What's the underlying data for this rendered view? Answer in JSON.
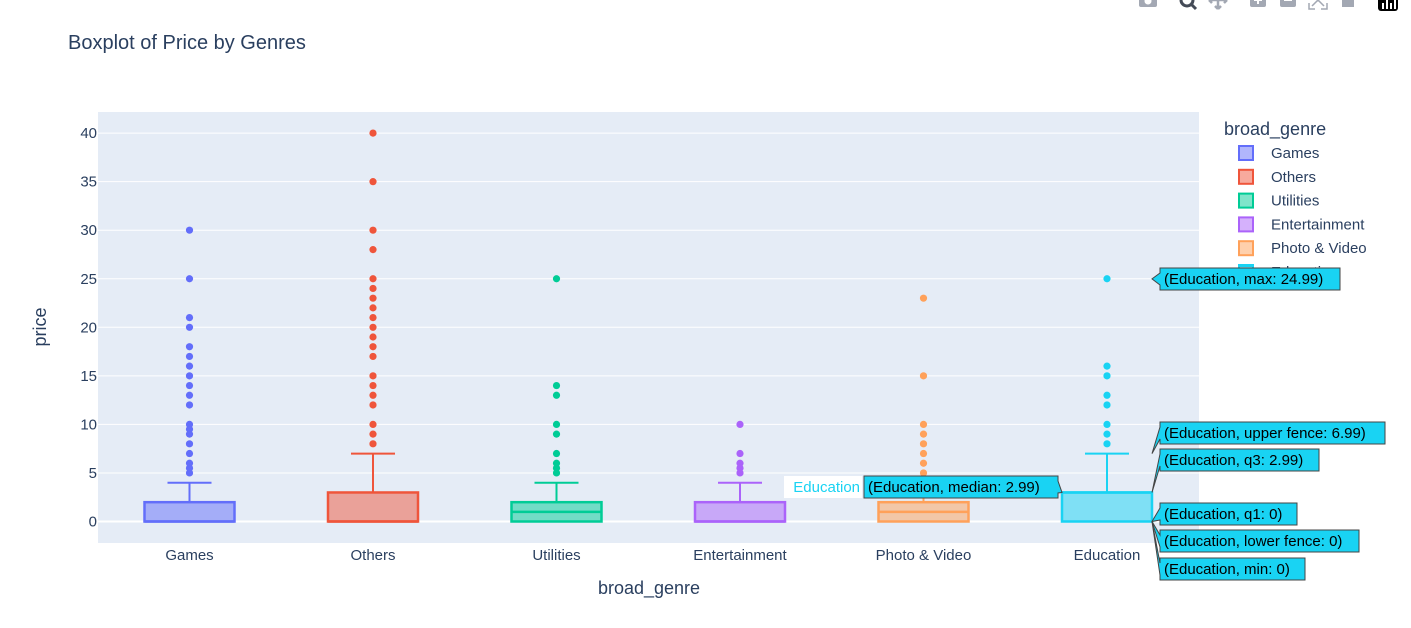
{
  "chart_data": {
    "type": "box",
    "title": "Boxplot of Price by Genres",
    "xlabel": "broad_genre",
    "ylabel": "price",
    "ylim": [
      -2.3,
      42
    ],
    "yticks": [
      0,
      5,
      10,
      15,
      20,
      25,
      30,
      35,
      40
    ],
    "grid": true,
    "legend_title": "broad_genre",
    "legend_position": "right",
    "categories": [
      "Games",
      "Others",
      "Utilities",
      "Entertainment",
      "Photo & Video",
      "Education"
    ],
    "series": [
      {
        "name": "Games",
        "color": "#636efa",
        "min": 0,
        "q1": 0,
        "median": 0,
        "q3": 1.99,
        "upper_fence": 3.99,
        "outliers": [
          30,
          25,
          21,
          20,
          18,
          17,
          16,
          15,
          14,
          13,
          12,
          10,
          9.5,
          9,
          8,
          7,
          6,
          5.5,
          5
        ]
      },
      {
        "name": "Others",
        "color": "#ef553b",
        "min": 0,
        "q1": 0,
        "median": 0,
        "q3": 2.99,
        "upper_fence": 6.99,
        "outliers": [
          40,
          35,
          30,
          28,
          25,
          24,
          23,
          22,
          21,
          20,
          19,
          18,
          17,
          15,
          14,
          13,
          12,
          10,
          9,
          8
        ]
      },
      {
        "name": "Utilities",
        "color": "#00cc96",
        "min": 0,
        "q1": 0,
        "median": 0.99,
        "q3": 1.99,
        "upper_fence": 3.99,
        "outliers": [
          25,
          14,
          13,
          10,
          9,
          7,
          6,
          5.5,
          5
        ]
      },
      {
        "name": "Entertainment",
        "color": "#ab63fa",
        "min": 0,
        "q1": 0,
        "median": 0,
        "q3": 1.99,
        "upper_fence": 3.99,
        "outliers": [
          10,
          7,
          6,
          5.5,
          5
        ]
      },
      {
        "name": "Photo & Video",
        "color": "#ffa15a",
        "min": 0,
        "q1": 0,
        "median": 0.99,
        "q3": 1.99,
        "upper_fence": 3.99,
        "outliers": [
          23,
          15,
          10,
          9,
          8,
          7,
          6,
          5
        ]
      },
      {
        "name": "Education",
        "color": "#19d3f3",
        "min": 0,
        "q1": 0,
        "median": 2.99,
        "q3": 2.99,
        "upper_fence": 6.99,
        "outliers": [
          25,
          16,
          15,
          13,
          12,
          10,
          9,
          8
        ]
      }
    ],
    "hover": {
      "category_label": "Education",
      "labels": [
        {
          "key": "max",
          "text": "(Education, max: 24.99)",
          "value": 24.99
        },
        {
          "key": "upper",
          "text": "(Education, upper fence: 6.99)",
          "value": 6.99
        },
        {
          "key": "q3",
          "text": "(Education, q3: 2.99)",
          "value": 2.99
        },
        {
          "key": "median",
          "text": "(Education, median: 2.99)",
          "value": 2.99
        },
        {
          "key": "q1",
          "text": "(Education, q1: 0)",
          "value": 0
        },
        {
          "key": "lower",
          "text": "(Education, lower fence: 0)",
          "value": 0
        },
        {
          "key": "min",
          "text": "(Education, min: 0)",
          "value": 0
        }
      ]
    }
  },
  "modebar": [
    {
      "name": "camera-icon"
    },
    {
      "name": "zoom-icon"
    },
    {
      "name": "pan-icon"
    },
    {
      "name": "zoom-in-icon"
    },
    {
      "name": "zoom-out-icon"
    },
    {
      "name": "autoscale-icon"
    },
    {
      "name": "reset-axes-icon"
    },
    {
      "name": "plotly-logo-icon"
    }
  ]
}
